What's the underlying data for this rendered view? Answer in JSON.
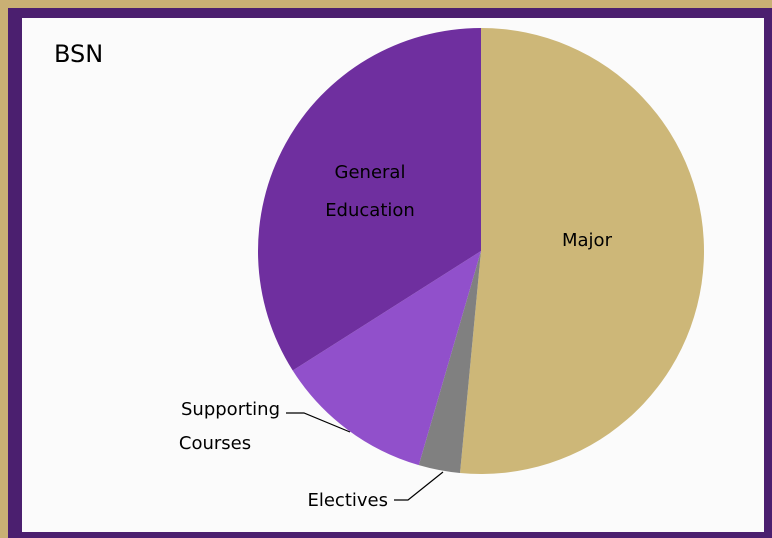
{
  "chart_data": {
    "type": "pie",
    "title": "BSN",
    "slices": [
      {
        "label": "Major",
        "value": 51.5,
        "color": "#cdb778"
      },
      {
        "label": "Electives",
        "value": 3.0,
        "color": "#808080"
      },
      {
        "label": "Supporting Courses",
        "value": 11.5,
        "color": "#9150cb"
      },
      {
        "label": "General Education",
        "value": 34.0,
        "color": "#6f2f9f"
      }
    ]
  },
  "labels": {
    "major": "Major",
    "gen_ed_line1": "General",
    "gen_ed_line2": "Education",
    "supporting_line1": "Supporting",
    "supporting_line2": "Courses",
    "electives": "Electives"
  }
}
